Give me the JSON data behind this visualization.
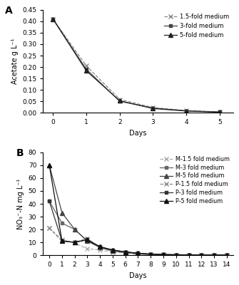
{
  "panel_A": {
    "title": "A",
    "xlabel": "Days",
    "ylabel": "Acetate g L⁻¹",
    "ylim": [
      0,
      0.45
    ],
    "yticks": [
      0,
      0.05,
      0.1,
      0.15,
      0.2,
      0.25,
      0.3,
      0.35,
      0.4,
      0.45
    ],
    "xticks": [
      0,
      1,
      2,
      3,
      4,
      5
    ],
    "series": [
      {
        "label": "1.5-fold medium",
        "x": [
          0,
          1,
          2,
          3,
          4,
          5
        ],
        "y": [
          0.41,
          0.205,
          0.058,
          0.022,
          0.009,
          0.003
        ],
        "marker": "x",
        "color": "#888888",
        "linestyle": "--",
        "markersize": 4
      },
      {
        "label": "3-fold medium",
        "x": [
          0,
          1,
          2,
          3,
          4,
          5
        ],
        "y": [
          0.41,
          0.19,
          0.05,
          0.02,
          0.008,
          0.003
        ],
        "marker": "s",
        "color": "#444444",
        "linestyle": "-",
        "markersize": 3.5
      },
      {
        "label": "5-fold medium",
        "x": [
          0,
          1,
          2,
          3,
          4,
          5
        ],
        "y": [
          0.41,
          0.183,
          0.052,
          0.018,
          0.007,
          0.002
        ],
        "marker": "^",
        "color": "#222222",
        "linestyle": "-",
        "markersize": 4
      }
    ]
  },
  "panel_B": {
    "title": "B",
    "xlabel": "Days",
    "ylabel": "NO₃⁻-N mg L⁻¹",
    "ylim": [
      0,
      80
    ],
    "yticks": [
      0,
      10,
      20,
      30,
      40,
      50,
      60,
      70,
      80
    ],
    "xticks": [
      0,
      1,
      2,
      3,
      4,
      5,
      6,
      7,
      8,
      9,
      10,
      11,
      12,
      13,
      14
    ],
    "series": [
      {
        "label": "M-1.5 fold medium",
        "x": [
          0,
          1,
          2,
          3,
          4,
          5,
          6,
          7,
          8,
          9,
          10,
          11,
          12,
          13,
          14
        ],
        "y": [
          21,
          12,
          9.5,
          5,
          4,
          2.5,
          1.5,
          1.0,
          0.5,
          0.3,
          0.2,
          0.15,
          0.1,
          0.05,
          0.0
        ],
        "marker": "x",
        "color": "#aaaaaa",
        "linestyle": "--",
        "markersize": 4
      },
      {
        "label": "M-3 fold medium",
        "x": [
          0,
          1,
          2,
          3,
          4,
          5,
          6,
          7,
          8,
          9,
          10,
          11,
          12,
          13,
          14
        ],
        "y": [
          42,
          25,
          20,
          11,
          6,
          3.5,
          2.0,
          1.2,
          0.7,
          0.4,
          0.2,
          0.15,
          0.1,
          0.05,
          0.0
        ],
        "marker": "s",
        "color": "#666666",
        "linestyle": "-",
        "markersize": 3.5
      },
      {
        "label": "M-5 fold medium",
        "x": [
          0,
          1,
          2,
          3,
          4,
          5,
          6,
          7,
          8,
          9,
          10,
          11,
          12,
          13,
          14
        ],
        "y": [
          70,
          33,
          20,
          11,
          6,
          3.5,
          2.0,
          1.0,
          0.5,
          0.3,
          0.2,
          0.1,
          0.1,
          0.05,
          0.0
        ],
        "marker": "^",
        "color": "#444444",
        "linestyle": "-",
        "markersize": 4
      },
      {
        "label": "P-1.5 fold medium",
        "x": [
          0,
          1,
          2,
          3,
          4,
          5,
          6,
          7,
          8,
          9,
          10,
          11,
          12,
          13,
          14
        ],
        "y": [
          21,
          11,
          10,
          13,
          5.5,
          3.0,
          2.0,
          1.2,
          0.8,
          0.5,
          0.3,
          0.2,
          0.1,
          0.05,
          0.0
        ],
        "marker": "x",
        "color": "#888888",
        "linestyle": "--",
        "markersize": 4
      },
      {
        "label": "P-3 fold medium",
        "x": [
          0,
          1,
          2,
          3,
          4,
          5,
          6,
          7,
          8,
          9,
          10,
          11,
          12,
          13,
          14
        ],
        "y": [
          42,
          11,
          10,
          12,
          6.5,
          4.0,
          2.5,
          1.5,
          0.8,
          0.5,
          0.3,
          0.2,
          0.1,
          0.05,
          0.0
        ],
        "marker": "s",
        "color": "#333333",
        "linestyle": "-",
        "markersize": 3.5
      },
      {
        "label": "P-5 fold medium",
        "x": [
          0,
          1,
          2,
          3,
          4,
          5,
          6,
          7,
          8,
          9,
          10,
          11,
          12,
          13,
          14
        ],
        "y": [
          70,
          11,
          10,
          12,
          6.5,
          4.0,
          2.5,
          1.5,
          0.8,
          0.5,
          0.3,
          0.2,
          0.1,
          0.05,
          0.0
        ],
        "marker": "^",
        "color": "#111111",
        "linestyle": "-",
        "markersize": 4
      }
    ]
  }
}
